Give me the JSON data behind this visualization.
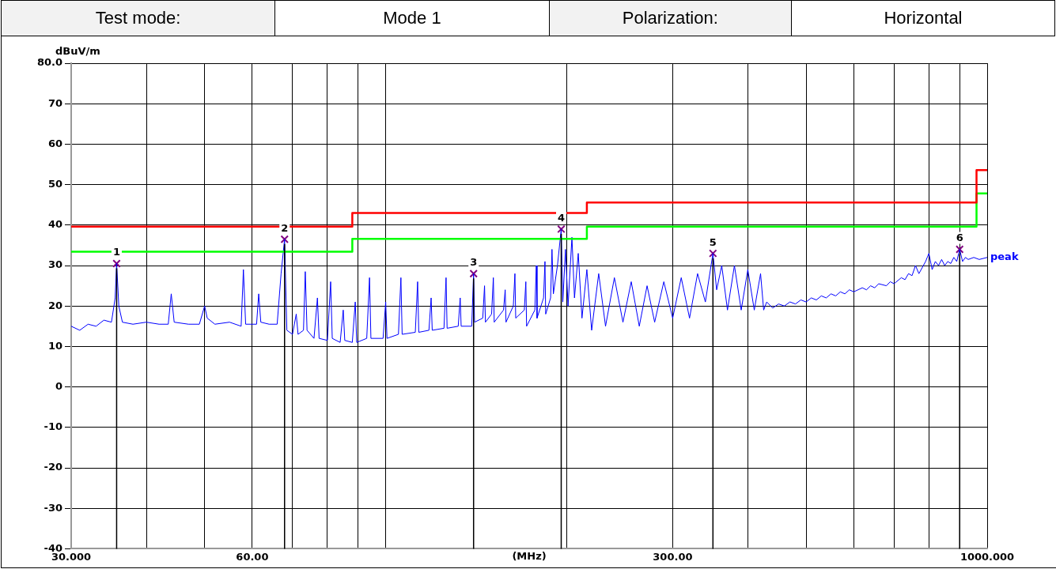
{
  "chart_data": {
    "type": "line",
    "xlabel": "(MHz)",
    "ylabel": "dBuV/m",
    "annotations": [
      "Test mode:",
      "Mode 1",
      "Polarization:",
      "Horizontal",
      {
        "text": "1",
        "x": 35.7,
        "y": 30.5
      },
      {
        "text": "2",
        "x": 67.9,
        "y": 36.5
      },
      {
        "text": "3",
        "x": 140,
        "y": 28
      },
      {
        "text": "4",
        "x": 195.8,
        "y": 39
      },
      {
        "text": "5",
        "x": 350,
        "y": 33
      },
      {
        "text": "6",
        "x": 900,
        "y": 34
      }
    ],
    "log": "x",
    "grid": true,
    "legend": false,
    "xlim": [
      30,
      1000
    ],
    "xticks": [
      {
        "value": 30,
        "label": "30.000"
      },
      {
        "value": 40,
        "label": null
      },
      {
        "value": 50,
        "label": null
      },
      {
        "value": 60,
        "label": "60.00"
      },
      {
        "value": 70,
        "label": null
      },
      {
        "value": 80,
        "label": null
      },
      {
        "value": 90,
        "label": null
      },
      {
        "value": 100,
        "label": null
      },
      {
        "value": 200,
        "label": null
      },
      {
        "value": 300,
        "label": "300.00"
      },
      {
        "value": 400,
        "label": null
      },
      {
        "value": 500,
        "label": null
      },
      {
        "value": 600,
        "label": null
      },
      {
        "value": 700,
        "label": null
      },
      {
        "value": 800,
        "label": null
      },
      {
        "value": 900,
        "label": null
      },
      {
        "value": 1000,
        "label": "1000.000"
      }
    ],
    "ylim": [
      -40,
      80
    ],
    "yticks": [
      -40,
      -30,
      -20,
      -10,
      0,
      10,
      20,
      30,
      40,
      50,
      60,
      70,
      {
        "value": 80,
        "label": "80.0"
      }
    ],
    "series": [
      {
        "color": "#ff0000",
        "x": [
          30,
          88,
          88,
          216,
          216,
          960,
          960,
          1000
        ],
        "values": [
          39.6,
          39.6,
          43,
          43,
          45.6,
          45.6,
          53.6,
          53.6
        ]
      },
      {
        "color": "#00ff00",
        "x": [
          30,
          88,
          88,
          216,
          216,
          960,
          960,
          1000
        ],
        "values": [
          33.4,
          33.4,
          36.6,
          36.6,
          39.6,
          39.6,
          47.8,
          47.8
        ]
      },
      {
        "name": "peak",
        "color": "#0000ff",
        "x": [
          30,
          31,
          32,
          33,
          34,
          35,
          35.5,
          35.7,
          36,
          36.5,
          38,
          40,
          42,
          43.5,
          44,
          44.5,
          47,
          49,
          50,
          50.5,
          52,
          55,
          57.5,
          58,
          58.5,
          61,
          61.5,
          62,
          64,
          66,
          67,
          67.9,
          68.5,
          70,
          71,
          71.5,
          73,
          73.5,
          74,
          76,
          77,
          77.5,
          80,
          81,
          81.5,
          84,
          85,
          85.5,
          88,
          89,
          89.5,
          93,
          94,
          94.5,
          99,
          100,
          100.5,
          105,
          106,
          106.5,
          112,
          113,
          113.5,
          118,
          119,
          119.5,
          125,
          126,
          126.5,
          132,
          133,
          133.5,
          139,
          140,
          140.5,
          145,
          146,
          146.5,
          150,
          151,
          151.5,
          157,
          158,
          158.5,
          163,
          164,
          164.5,
          170,
          171,
          171.5,
          177,
          178,
          178.5,
          183,
          184,
          184.5,
          188,
          189,
          190,
          193,
          195.8,
          197,
          199,
          201,
          204,
          206,
          209,
          212,
          216,
          220,
          226,
          232,
          240,
          248,
          256,
          264,
          272,
          280,
          290,
          300,
          310,
          320,
          330,
          340,
          350,
          355,
          362,
          370,
          380,
          390,
          400,
          410,
          420,
          425,
          430,
          440,
          450,
          460,
          470,
          480,
          490,
          500,
          510,
          520,
          530,
          540,
          550,
          560,
          570,
          580,
          590,
          600,
          620,
          630,
          640,
          650,
          660,
          680,
          690,
          700,
          720,
          730,
          740,
          750,
          760,
          770,
          790,
          800,
          810,
          820,
          830,
          840,
          850,
          860,
          870,
          880,
          890,
          900,
          910,
          920,
          930,
          950,
          970,
          1000
        ],
        "values": [
          15,
          14,
          15.5,
          15,
          16.5,
          16,
          22,
          30.5,
          20,
          16,
          15.5,
          16,
          15.5,
          15.5,
          23,
          16,
          15.5,
          15.5,
          20,
          17,
          15.5,
          16,
          15,
          29,
          15.5,
          15.5,
          23,
          16,
          15.5,
          15.5,
          28,
          36.5,
          14,
          13,
          18,
          13,
          14,
          28.5,
          14,
          12,
          22,
          12,
          11.5,
          26,
          12,
          11,
          19,
          11.5,
          11,
          21,
          11,
          12,
          27,
          12,
          12,
          21,
          12,
          13,
          27,
          13,
          13.5,
          26,
          13.5,
          14,
          22,
          14,
          14.5,
          27,
          14.5,
          15,
          22,
          15,
          15,
          28,
          16,
          17,
          25,
          16,
          18,
          27,
          16,
          19,
          24,
          16,
          20,
          28,
          17,
          19,
          26,
          15,
          19,
          30,
          17,
          22,
          31,
          18,
          22,
          34,
          23,
          30,
          39,
          21,
          34,
          20,
          37,
          22,
          33,
          17,
          29,
          14,
          28,
          15,
          27,
          16,
          26,
          15,
          25,
          16,
          26,
          17,
          27,
          17,
          28,
          21,
          33,
          24,
          30,
          19,
          30,
          19,
          29,
          19,
          28,
          19,
          21,
          19.5,
          20.5,
          20,
          21,
          20.5,
          21.5,
          21,
          22,
          21.5,
          22.5,
          22,
          23,
          22.5,
          23.5,
          23,
          24,
          23.5,
          24.5,
          24,
          25,
          24.5,
          25.5,
          25,
          26,
          25.5,
          27,
          26.5,
          28,
          27.5,
          30,
          28,
          31,
          33,
          29,
          31,
          30,
          31.5,
          30,
          31,
          30.5,
          32,
          31,
          34,
          31,
          32,
          31.5,
          32,
          31.5,
          32
        ]
      },
      {
        "type": "scatter",
        "marker": "cross",
        "color": "#800080",
        "x": [
          35.7,
          67.9,
          140,
          195.8,
          350,
          900
        ],
        "values": [
          30.5,
          36.5,
          28,
          39,
          33,
          34
        ]
      }
    ]
  }
}
